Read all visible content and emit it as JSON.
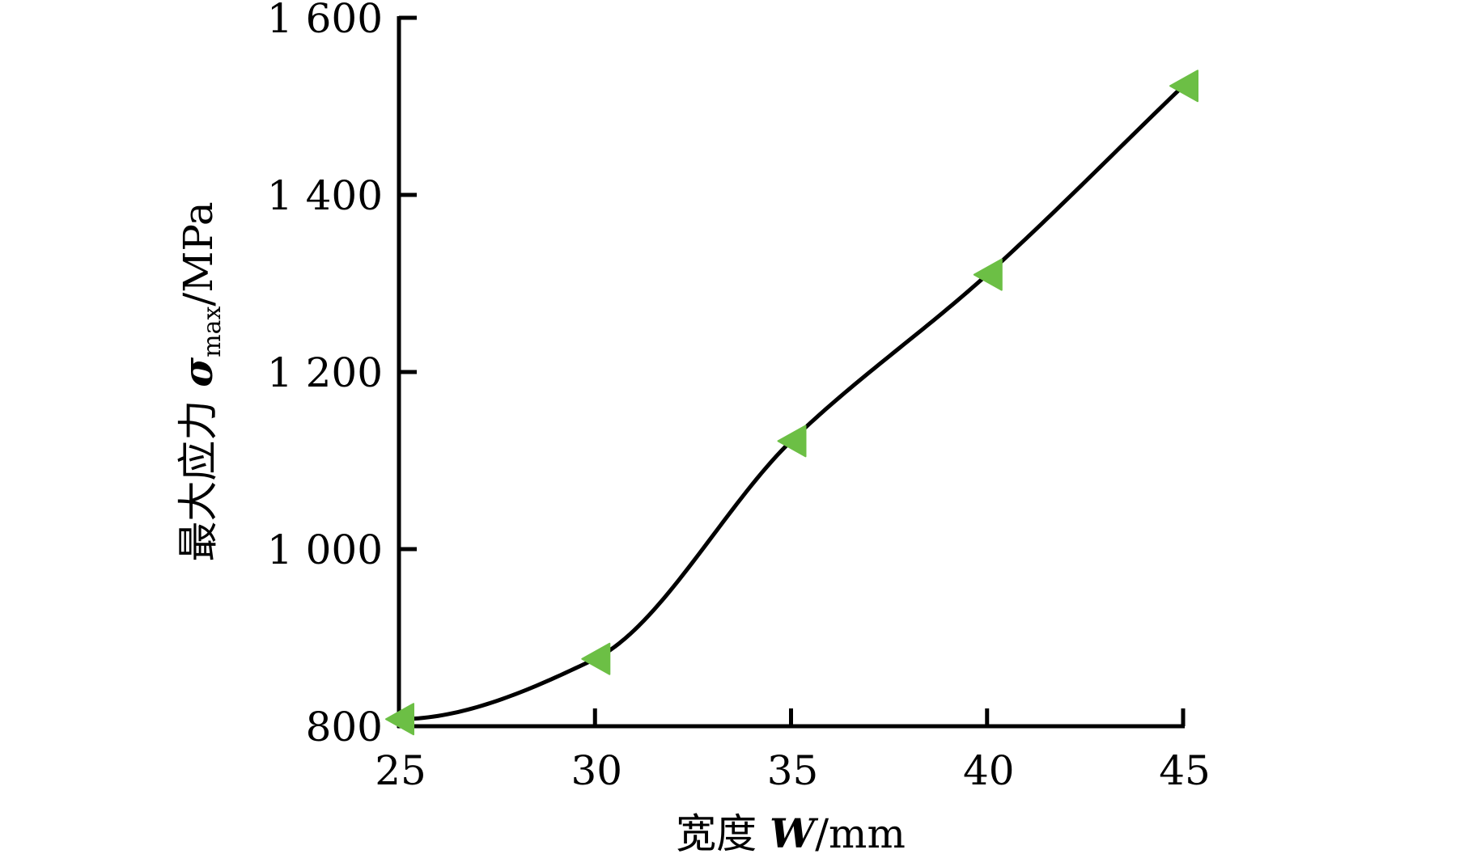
{
  "chart_data": {
    "type": "line",
    "title": "",
    "xlabel": {
      "prefix": "宽度 ",
      "symbol": "W",
      "unit": "/mm"
    },
    "ylabel": {
      "prefix": "最大应力 ",
      "symbol": "σ",
      "subscript": "max",
      "unit": "/MPa"
    },
    "xlim": [
      25,
      45
    ],
    "ylim": [
      800,
      1600
    ],
    "xticks": [
      25,
      30,
      35,
      40,
      45
    ],
    "xtick_labels": [
      "25",
      "30",
      "35",
      "40",
      "45"
    ],
    "yticks": [
      800,
      1000,
      1200,
      1400,
      1600
    ],
    "ytick_labels": [
      "800",
      "1 000",
      "1 200",
      "1 400",
      "1 600"
    ],
    "grid": false,
    "legend": "none",
    "series": [
      {
        "x": [
          25,
          30,
          35,
          40,
          45
        ],
        "y": [
          808,
          876,
          1122,
          1310,
          1523
        ],
        "marker": "triangle-left",
        "marker_color": "#6cbf45",
        "line_color": "#000000",
        "smooth": true
      }
    ]
  }
}
